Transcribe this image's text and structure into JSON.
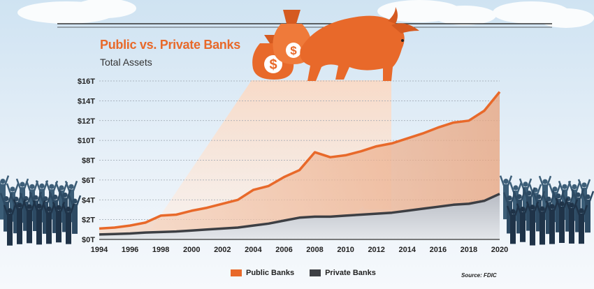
{
  "chart_data": {
    "type": "area",
    "title": "Public vs. Private Banks",
    "subtitle": "Total Assets",
    "x": [
      1994,
      1995,
      1996,
      1997,
      1998,
      1999,
      2000,
      2001,
      2002,
      2003,
      2004,
      2005,
      2006,
      2007,
      2008,
      2009,
      2010,
      2011,
      2012,
      2013,
      2014,
      2015,
      2016,
      2017,
      2018,
      2019,
      2020
    ],
    "series": [
      {
        "name": "Public Banks",
        "color": "#e8692a",
        "values": [
          1.1,
          1.2,
          1.4,
          1.7,
          2.4,
          2.5,
          2.9,
          3.2,
          3.6,
          4.0,
          5.0,
          5.4,
          6.3,
          7.0,
          8.8,
          8.3,
          8.5,
          8.9,
          9.4,
          9.7,
          10.2,
          10.7,
          11.3,
          11.8,
          12.0,
          13.0,
          14.9
        ]
      },
      {
        "name": "Private Banks",
        "color": "#3d3f44",
        "values": [
          0.5,
          0.55,
          0.6,
          0.7,
          0.75,
          0.8,
          0.9,
          1.0,
          1.1,
          1.2,
          1.4,
          1.6,
          1.9,
          2.2,
          2.3,
          2.3,
          2.4,
          2.5,
          2.6,
          2.7,
          2.9,
          3.1,
          3.3,
          3.5,
          3.6,
          3.9,
          4.6
        ]
      }
    ],
    "x_ticks": [
      1994,
      1996,
      1998,
      2000,
      2002,
      2004,
      2006,
      2008,
      2010,
      2012,
      2014,
      2016,
      2018,
      2020
    ],
    "y_ticks": [
      0,
      2,
      4,
      6,
      8,
      10,
      12,
      14,
      16
    ],
    "y_tick_labels": [
      "$0T",
      "$2T",
      "$4T",
      "$6T",
      "$8T",
      "$10T",
      "$12T",
      "$14T",
      "$16T"
    ],
    "ylim": [
      0,
      16
    ],
    "xlim": [
      1994,
      2020
    ],
    "grid": "horizontal dashed",
    "legend": "bottom-center",
    "source": "Source: FDIC"
  }
}
